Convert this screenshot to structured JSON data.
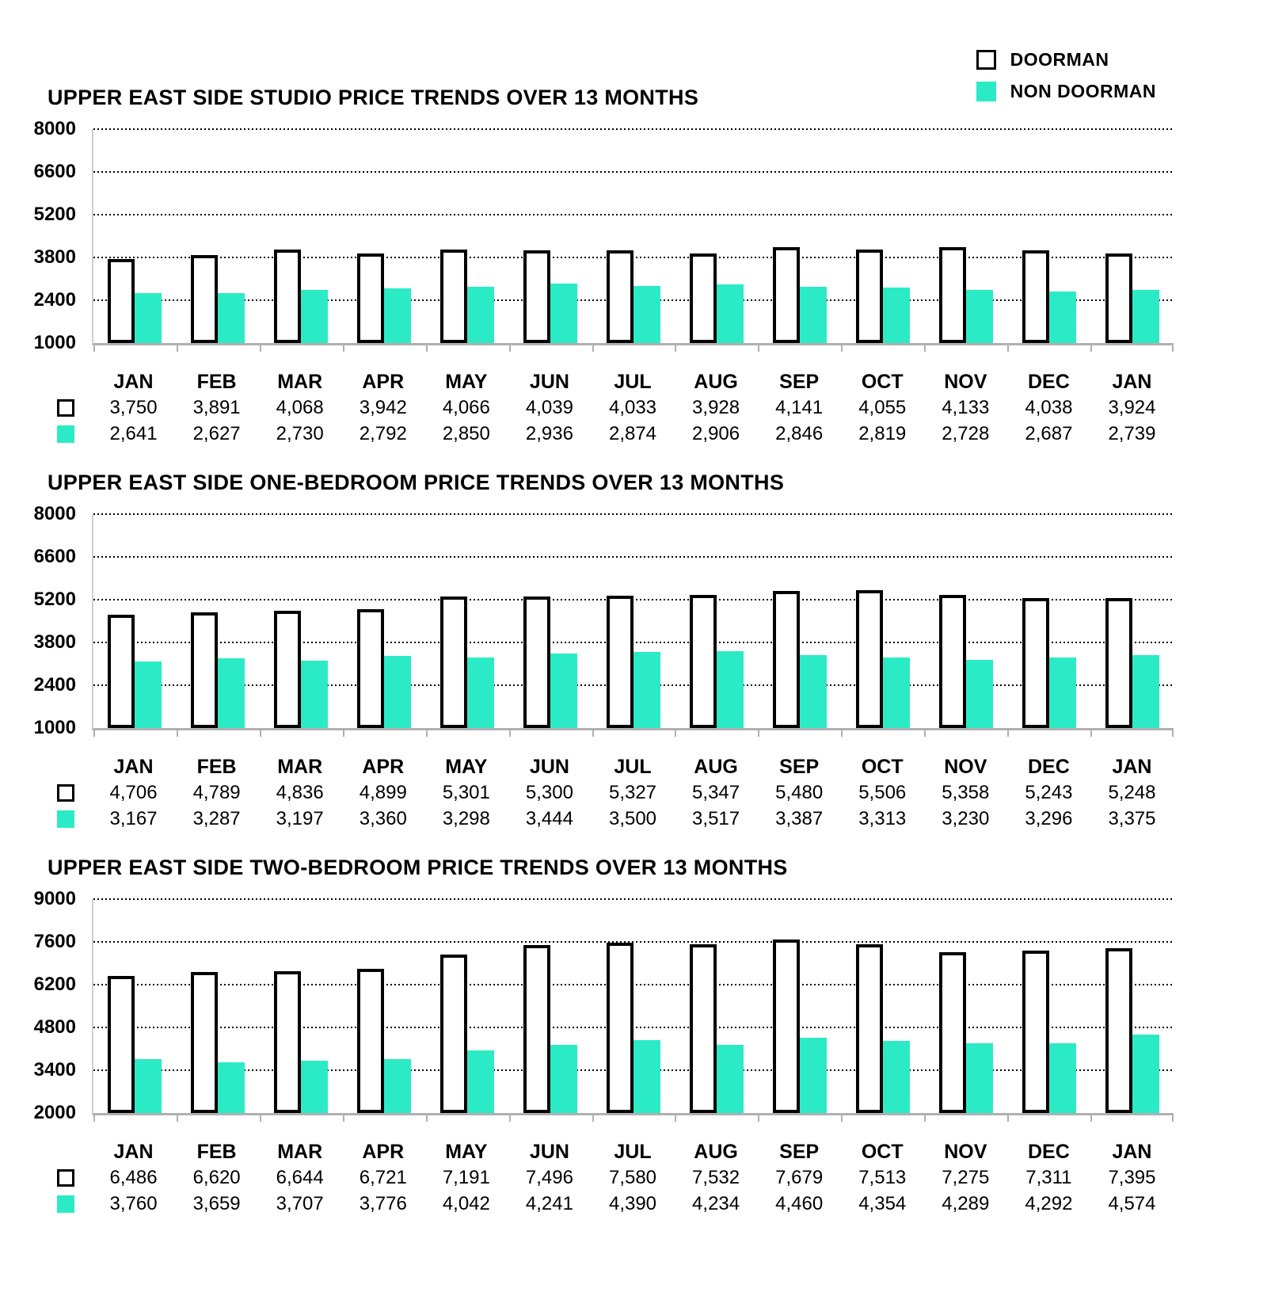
{
  "colors": {
    "non_doorman": "#2BEBC6",
    "doorman_fill": "#FFFFFF",
    "doorman_border": "#000000",
    "axis": "#B0B0B0",
    "gridline": "#000000"
  },
  "legend": {
    "position": "top-right",
    "items": [
      {
        "label": "DOORMAN",
        "swatch": "doorman"
      },
      {
        "label": "NON DOORMAN",
        "swatch": "non-doorman"
      }
    ]
  },
  "chart_data": [
    {
      "type": "bar",
      "title": "UPPER EAST SIDE STUDIO PRICE TRENDS OVER 13 MONTHS",
      "categories": [
        "JAN",
        "FEB",
        "MAR",
        "APR",
        "MAY",
        "JUN",
        "JUL",
        "AUG",
        "SEP",
        "OCT",
        "NOV",
        "DEC",
        "JAN"
      ],
      "series": [
        {
          "name": "DOORMAN",
          "values": [
            3750,
            3891,
            4068,
            3942,
            4066,
            4039,
            4033,
            3928,
            4141,
            4055,
            4133,
            4038,
            3924
          ]
        },
        {
          "name": "NON DOORMAN",
          "values": [
            2641,
            2627,
            2730,
            2792,
            2850,
            2936,
            2874,
            2906,
            2846,
            2819,
            2728,
            2687,
            2739
          ]
        }
      ],
      "ylim": [
        1000,
        8000
      ],
      "yticks": [
        1000,
        2400,
        3800,
        5200,
        6600,
        8000
      ],
      "grid": "dotted-horizontal",
      "xlabel": "",
      "ylabel": ""
    },
    {
      "type": "bar",
      "title": "UPPER EAST SIDE ONE-BEDROOM PRICE TRENDS OVER 13 MONTHS",
      "categories": [
        "JAN",
        "FEB",
        "MAR",
        "APR",
        "MAY",
        "JUN",
        "JUL",
        "AUG",
        "SEP",
        "OCT",
        "NOV",
        "DEC",
        "JAN"
      ],
      "series": [
        {
          "name": "DOORMAN",
          "values": [
            4706,
            4789,
            4836,
            4899,
            5301,
            5300,
            5327,
            5347,
            5480,
            5506,
            5358,
            5243,
            5248
          ]
        },
        {
          "name": "NON DOORMAN",
          "values": [
            3167,
            3287,
            3197,
            3360,
            3298,
            3444,
            3500,
            3517,
            3387,
            3313,
            3230,
            3296,
            3375
          ]
        }
      ],
      "ylim": [
        1000,
        8000
      ],
      "yticks": [
        1000,
        2400,
        3800,
        5200,
        6600,
        8000
      ],
      "grid": "dotted-horizontal",
      "xlabel": "",
      "ylabel": ""
    },
    {
      "type": "bar",
      "title": "UPPER EAST SIDE TWO-BEDROOM PRICE TRENDS OVER 13 MONTHS",
      "categories": [
        "JAN",
        "FEB",
        "MAR",
        "APR",
        "MAY",
        "JUN",
        "JUL",
        "AUG",
        "SEP",
        "OCT",
        "NOV",
        "DEC",
        "JAN"
      ],
      "series": [
        {
          "name": "DOORMAN",
          "values": [
            6486,
            6620,
            6644,
            6721,
            7191,
            7496,
            7580,
            7532,
            7679,
            7513,
            7275,
            7311,
            7395
          ]
        },
        {
          "name": "NON DOORMAN",
          "values": [
            3760,
            3659,
            3707,
            3776,
            4042,
            4241,
            4390,
            4234,
            4460,
            4354,
            4289,
            4292,
            4574
          ]
        }
      ],
      "ylim": [
        2000,
        9000
      ],
      "yticks": [
        2000,
        3400,
        4800,
        6200,
        7600,
        9000
      ],
      "grid": "dotted-horizontal",
      "xlabel": "",
      "ylabel": ""
    }
  ]
}
